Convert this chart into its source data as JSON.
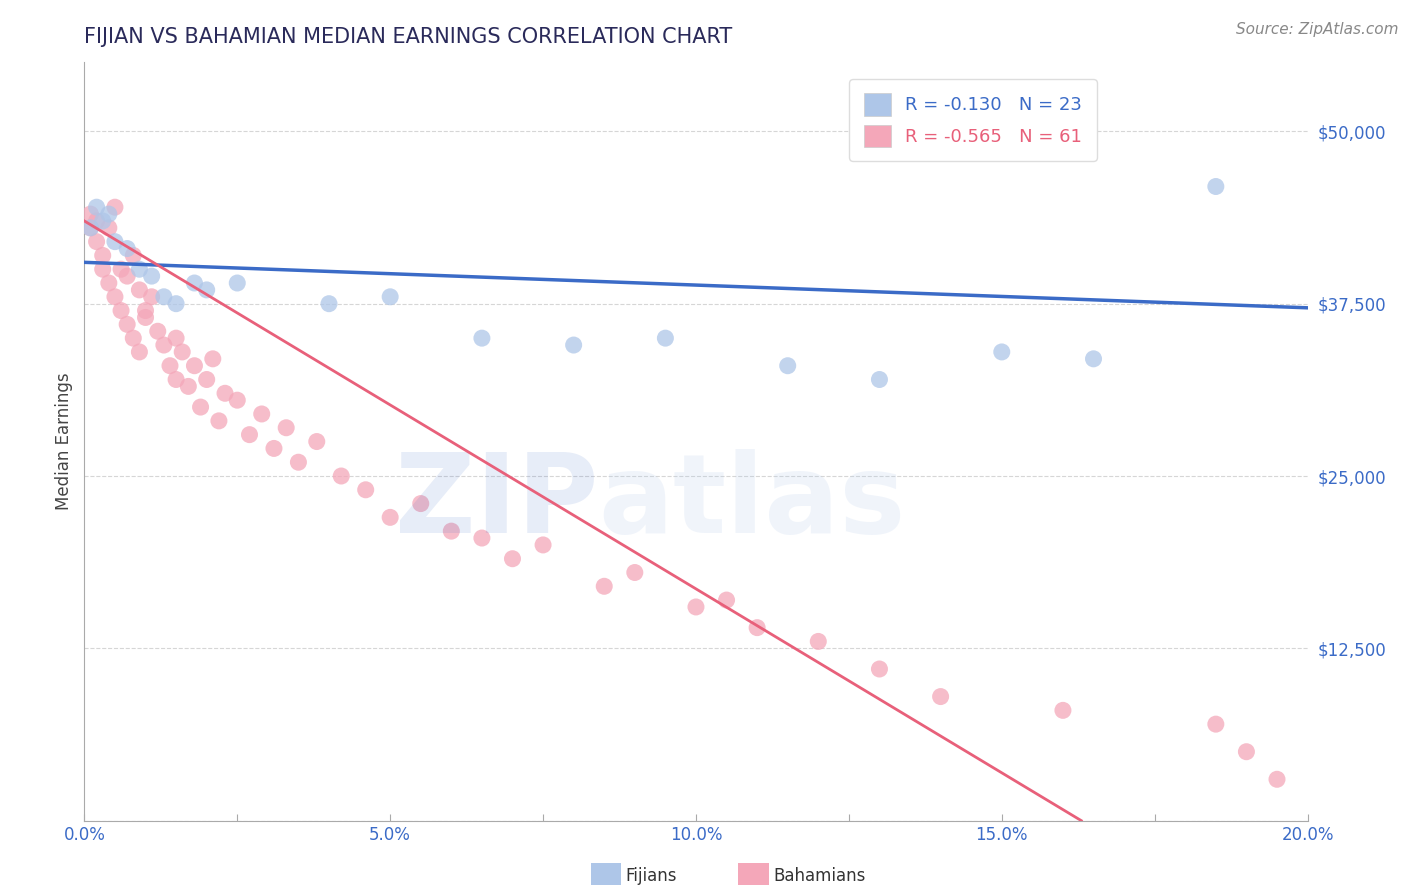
{
  "title": "FIJIAN VS BAHAMIAN MEDIAN EARNINGS CORRELATION CHART",
  "source_text": "Source: ZipAtlas.com",
  "ylabel": "Median Earnings",
  "xlim": [
    0.0,
    0.2
  ],
  "ylim": [
    0,
    55000
  ],
  "yticks": [
    0,
    12500,
    25000,
    37500,
    50000
  ],
  "ytick_labels": [
    "",
    "$12,500",
    "$25,000",
    "$37,500",
    "$50,000"
  ],
  "xticks": [
    0.0,
    0.025,
    0.05,
    0.075,
    0.1,
    0.125,
    0.15,
    0.175,
    0.2
  ],
  "xtick_labels": [
    "0.0%",
    "",
    "5.0%",
    "",
    "10.0%",
    "",
    "15.0%",
    "",
    "20.0%"
  ],
  "fijian_color": "#aec6e8",
  "bahamian_color": "#f4a7b9",
  "fijian_line_color": "#3b6bc7",
  "bahamian_line_color": "#e8607a",
  "fijian_R": -0.13,
  "fijian_N": 23,
  "bahamian_R": -0.565,
  "bahamian_N": 61,
  "grid_color": "#cccccc",
  "background_color": "#ffffff",
  "title_color": "#2a2a5a",
  "axis_label_color": "#444444",
  "tick_label_color": "#3b6bc7",
  "watermark_color_zip": "#3b6bc7",
  "watermark_color_atlas": "#aec6e8",
  "fijian_x": [
    0.001,
    0.002,
    0.003,
    0.004,
    0.005,
    0.007,
    0.009,
    0.011,
    0.013,
    0.015,
    0.018,
    0.02,
    0.025,
    0.04,
    0.05,
    0.065,
    0.08,
    0.095,
    0.115,
    0.13,
    0.15,
    0.165,
    0.185
  ],
  "fijian_y": [
    43000,
    44500,
    43500,
    44000,
    42000,
    41500,
    40000,
    39500,
    38000,
    37500,
    39000,
    38500,
    39000,
    37500,
    38000,
    35000,
    34500,
    35000,
    33000,
    32000,
    34000,
    33500,
    46000
  ],
  "bahamian_x": [
    0.001,
    0.001,
    0.002,
    0.002,
    0.003,
    0.003,
    0.004,
    0.004,
    0.005,
    0.005,
    0.006,
    0.006,
    0.007,
    0.007,
    0.008,
    0.008,
    0.009,
    0.009,
    0.01,
    0.01,
    0.011,
    0.012,
    0.013,
    0.014,
    0.015,
    0.015,
    0.016,
    0.017,
    0.018,
    0.019,
    0.02,
    0.021,
    0.022,
    0.023,
    0.025,
    0.027,
    0.029,
    0.031,
    0.033,
    0.035,
    0.038,
    0.042,
    0.046,
    0.05,
    0.055,
    0.06,
    0.065,
    0.07,
    0.075,
    0.085,
    0.09,
    0.1,
    0.105,
    0.11,
    0.12,
    0.13,
    0.14,
    0.16,
    0.185,
    0.19,
    0.195
  ],
  "bahamian_y": [
    44000,
    43000,
    43500,
    42000,
    41000,
    40000,
    43000,
    39000,
    44500,
    38000,
    40000,
    37000,
    39500,
    36000,
    41000,
    35000,
    38500,
    34000,
    37000,
    36500,
    38000,
    35500,
    34500,
    33000,
    35000,
    32000,
    34000,
    31500,
    33000,
    30000,
    32000,
    33500,
    29000,
    31000,
    30500,
    28000,
    29500,
    27000,
    28500,
    26000,
    27500,
    25000,
    24000,
    22000,
    23000,
    21000,
    20500,
    19000,
    20000,
    17000,
    18000,
    15500,
    16000,
    14000,
    13000,
    11000,
    9000,
    8000,
    7000,
    5000,
    3000
  ],
  "fijian_line_x": [
    0.0,
    0.2
  ],
  "fijian_line_y": [
    40500,
    37200
  ],
  "bahamian_line_x": [
    0.0,
    0.163
  ],
  "bahamian_line_y": [
    43500,
    0
  ]
}
